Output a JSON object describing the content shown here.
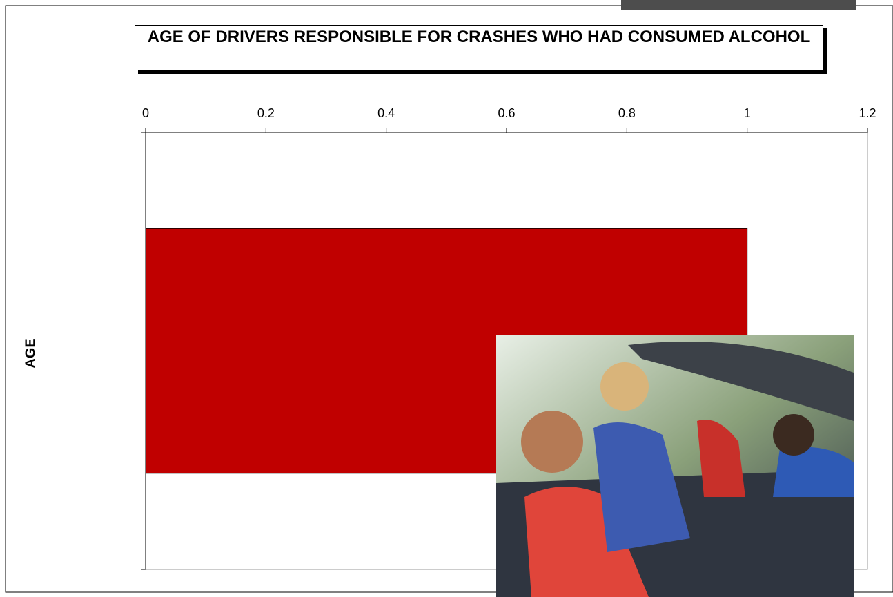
{
  "chart_data": {
    "type": "bar",
    "orientation": "horizontal",
    "title": "AGE OF DRIVERS RESPONSIBLE FOR CRASHES WHO HAD CONSUMED ALCOHOL",
    "y_label": "AGE",
    "categories": [
      null
    ],
    "values": [
      1
    ],
    "color": "#c00000",
    "xlim": [
      0,
      1.2
    ],
    "xticks": [
      0,
      0.2,
      0.4,
      0.6,
      0.8,
      1,
      1.2
    ],
    "grid": false
  }
}
